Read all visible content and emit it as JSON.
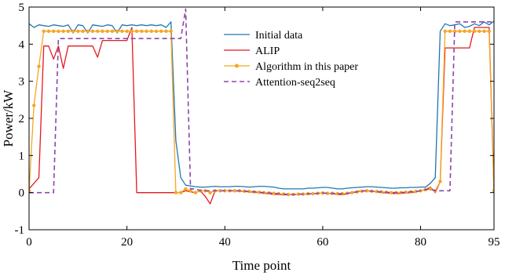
{
  "chart_data": {
    "type": "line",
    "title": "",
    "xlabel": "Time point",
    "ylabel": "Power/kW",
    "xlim": [
      0,
      95
    ],
    "ylim": [
      -1,
      5
    ],
    "xticks": [
      0,
      20,
      40,
      60,
      80,
      95
    ],
    "yticks": [
      -1,
      0,
      1,
      2,
      3,
      4,
      5
    ],
    "xtick_labels": [
      "0",
      "20",
      "40",
      "60",
      "80",
      "95"
    ],
    "ytick_labels": [
      "-1",
      "0",
      "1",
      "2",
      "3",
      "4",
      "5"
    ],
    "grid": false,
    "legend_position": "top-center",
    "series": [
      {
        "name": "Initial data",
        "color": "#1f77b4",
        "style": "solid",
        "marker": "none",
        "x": [
          0,
          1,
          2,
          3,
          4,
          5,
          6,
          7,
          8,
          9,
          10,
          11,
          12,
          13,
          14,
          15,
          16,
          17,
          18,
          19,
          20,
          21,
          22,
          23,
          24,
          25,
          26,
          27,
          28,
          29,
          30,
          31,
          32,
          33,
          34,
          35,
          36,
          37,
          38,
          39,
          40,
          41,
          42,
          43,
          44,
          45,
          46,
          47,
          48,
          49,
          50,
          51,
          52,
          53,
          54,
          55,
          56,
          57,
          58,
          59,
          60,
          61,
          62,
          63,
          64,
          65,
          66,
          67,
          68,
          69,
          70,
          71,
          72,
          73,
          74,
          75,
          76,
          77,
          78,
          79,
          80,
          81,
          82,
          83,
          84,
          85,
          86,
          87,
          88,
          89,
          90,
          91,
          92,
          93,
          94,
          95
        ],
        "y": [
          4.55,
          4.45,
          4.52,
          4.5,
          4.48,
          4.52,
          4.5,
          4.48,
          4.52,
          4.3,
          4.52,
          4.5,
          4.3,
          4.52,
          4.5,
          4.48,
          4.52,
          4.5,
          4.3,
          4.52,
          4.5,
          4.52,
          4.5,
          4.52,
          4.5,
          4.52,
          4.5,
          4.52,
          4.45,
          4.6,
          1.4,
          0.4,
          0.2,
          0.18,
          0.16,
          0.15,
          0.15,
          0.16,
          0.17,
          0.16,
          0.16,
          0.16,
          0.17,
          0.17,
          0.16,
          0.15,
          0.16,
          0.17,
          0.17,
          0.16,
          0.15,
          0.12,
          0.1,
          0.1,
          0.1,
          0.1,
          0.1,
          0.12,
          0.12,
          0.13,
          0.14,
          0.14,
          0.12,
          0.1,
          0.1,
          0.12,
          0.13,
          0.14,
          0.15,
          0.16,
          0.16,
          0.15,
          0.14,
          0.13,
          0.12,
          0.12,
          0.13,
          0.13,
          0.14,
          0.14,
          0.15,
          0.15,
          0.25,
          0.4,
          4.35,
          4.55,
          4.5,
          4.52,
          4.55,
          4.45,
          4.48,
          4.55,
          4.5,
          4.6,
          4.52,
          4.62
        ]
      },
      {
        "name": "ALIP",
        "color": "#e31a1c",
        "style": "solid",
        "marker": "none",
        "x": [
          0,
          1,
          2,
          3,
          4,
          5,
          6,
          7,
          8,
          9,
          10,
          11,
          12,
          13,
          14,
          15,
          16,
          17,
          18,
          19,
          20,
          21,
          22,
          23,
          24,
          25,
          26,
          27,
          28,
          29,
          30,
          31,
          32,
          33,
          34,
          35,
          36,
          37,
          38,
          39,
          40,
          41,
          42,
          43,
          44,
          45,
          46,
          47,
          48,
          49,
          50,
          51,
          52,
          53,
          54,
          55,
          56,
          57,
          58,
          59,
          60,
          61,
          62,
          63,
          64,
          65,
          66,
          67,
          68,
          69,
          70,
          71,
          72,
          73,
          74,
          75,
          76,
          77,
          78,
          79,
          80,
          81,
          82,
          83,
          84,
          85,
          86,
          87,
          88,
          89,
          90,
          91,
          92,
          93,
          94,
          95
        ],
        "y": [
          0.1,
          0.25,
          0.4,
          3.95,
          3.95,
          3.6,
          3.95,
          3.35,
          3.95,
          3.95,
          3.95,
          3.95,
          3.95,
          3.95,
          3.65,
          4.1,
          4.1,
          4.1,
          4.1,
          4.1,
          4.1,
          4.45,
          0.0,
          0.0,
          0.0,
          0.0,
          0.0,
          0.0,
          0.0,
          0.0,
          0.0,
          0.0,
          0.05,
          0.02,
          0.0,
          0.05,
          -0.1,
          -0.3,
          0.05,
          0.05,
          0.05,
          0.05,
          0.05,
          0.04,
          0.03,
          0.02,
          0.01,
          0.0,
          -0.02,
          -0.03,
          -0.05,
          -0.05,
          -0.06,
          -0.06,
          -0.05,
          -0.05,
          -0.04,
          -0.04,
          -0.03,
          -0.02,
          -0.01,
          -0.02,
          -0.03,
          -0.05,
          -0.06,
          -0.03,
          0.0,
          0.03,
          0.05,
          0.05,
          0.04,
          0.02,
          0.0,
          -0.01,
          -0.02,
          -0.03,
          -0.02,
          -0.01,
          0.0,
          0.02,
          0.05,
          0.08,
          0.15,
          0.0,
          0.3,
          3.9,
          3.9,
          3.9,
          3.9,
          3.9,
          3.9,
          4.45,
          4.45,
          4.45,
          4.45,
          0.05
        ]
      },
      {
        "name": "Algorithm in this paper",
        "color": "#f5a623",
        "style": "solid",
        "marker": "dot",
        "x": [
          0,
          1,
          2,
          3,
          4,
          5,
          6,
          7,
          8,
          9,
          10,
          11,
          12,
          13,
          14,
          15,
          16,
          17,
          18,
          19,
          20,
          21,
          22,
          23,
          24,
          25,
          26,
          27,
          28,
          29,
          30,
          31,
          32,
          33,
          34,
          35,
          36,
          37,
          38,
          39,
          40,
          41,
          42,
          43,
          44,
          45,
          46,
          47,
          48,
          49,
          50,
          51,
          52,
          53,
          54,
          55,
          56,
          57,
          58,
          59,
          60,
          61,
          62,
          63,
          64,
          65,
          66,
          67,
          68,
          69,
          70,
          71,
          72,
          73,
          74,
          75,
          76,
          77,
          78,
          79,
          80,
          81,
          82,
          83,
          84,
          85,
          86,
          87,
          88,
          89,
          90,
          91,
          92,
          93,
          94,
          95
        ],
        "y": [
          0.05,
          2.35,
          3.4,
          4.35,
          4.35,
          4.35,
          4.35,
          4.35,
          4.35,
          4.35,
          4.35,
          4.35,
          4.35,
          4.35,
          4.35,
          4.35,
          4.35,
          4.35,
          4.35,
          4.35,
          4.35,
          4.35,
          4.35,
          4.35,
          4.35,
          4.35,
          4.35,
          4.35,
          4.35,
          4.35,
          0.0,
          0.0,
          0.1,
          0.05,
          0.0,
          0.05,
          0.05,
          0.0,
          0.05,
          0.05,
          0.05,
          0.05,
          0.05,
          0.05,
          0.04,
          0.03,
          0.02,
          0.01,
          0.0,
          -0.01,
          -0.02,
          -0.03,
          -0.04,
          -0.05,
          -0.05,
          -0.04,
          -0.04,
          -0.03,
          -0.03,
          -0.02,
          -0.01,
          -0.02,
          -0.02,
          -0.03,
          -0.03,
          -0.02,
          0.0,
          0.02,
          0.04,
          0.05,
          0.04,
          0.03,
          0.02,
          0.01,
          0.0,
          0.0,
          0.0,
          0.01,
          0.02,
          0.03,
          0.05,
          0.08,
          0.1,
          0.05,
          0.3,
          4.35,
          4.35,
          4.35,
          4.35,
          4.35,
          4.35,
          4.35,
          4.35,
          4.35,
          4.35,
          0.05
        ]
      },
      {
        "name": "Attention-seq2seq",
        "color": "#8e44ad",
        "style": "dashed",
        "marker": "none",
        "x": [
          0,
          1,
          2,
          3,
          4,
          5,
          6,
          7,
          8,
          9,
          10,
          11,
          12,
          13,
          14,
          15,
          16,
          17,
          18,
          19,
          20,
          21,
          22,
          23,
          24,
          25,
          26,
          27,
          28,
          29,
          30,
          31,
          32,
          33,
          34,
          35,
          36,
          37,
          38,
          39,
          40,
          41,
          42,
          43,
          44,
          45,
          46,
          47,
          48,
          49,
          50,
          51,
          52,
          53,
          54,
          55,
          56,
          57,
          58,
          59,
          60,
          61,
          62,
          63,
          64,
          65,
          66,
          67,
          68,
          69,
          70,
          71,
          72,
          73,
          74,
          75,
          76,
          77,
          78,
          79,
          80,
          81,
          82,
          83,
          84,
          85,
          86,
          87,
          88,
          89,
          90,
          91,
          92,
          93,
          94,
          95
        ],
        "y": [
          0.0,
          0.0,
          0.0,
          0.0,
          0.0,
          0.0,
          4.15,
          4.15,
          4.15,
          4.15,
          4.15,
          4.15,
          4.15,
          4.15,
          4.15,
          4.15,
          4.15,
          4.15,
          4.15,
          4.15,
          4.15,
          4.15,
          4.15,
          4.15,
          4.15,
          4.15,
          4.15,
          4.15,
          4.15,
          4.15,
          4.15,
          4.15,
          4.95,
          0.1,
          0.1,
          0.05,
          0.05,
          0.05,
          0.05,
          0.05,
          0.05,
          0.05,
          0.05,
          0.05,
          0.04,
          0.03,
          0.02,
          0.01,
          0.0,
          -0.01,
          -0.02,
          -0.03,
          -0.04,
          -0.05,
          -0.05,
          -0.04,
          -0.04,
          -0.03,
          -0.03,
          -0.02,
          -0.01,
          -0.02,
          -0.02,
          -0.03,
          -0.03,
          -0.02,
          0.0,
          0.02,
          0.04,
          0.05,
          0.04,
          0.03,
          0.02,
          0.01,
          0.0,
          0.0,
          0.0,
          0.01,
          0.02,
          0.03,
          0.05,
          0.08,
          0.1,
          0.05,
          0.05,
          0.05,
          0.05,
          4.6,
          4.6,
          4.6,
          4.6,
          4.6,
          4.6,
          4.6,
          4.6,
          4.6
        ]
      }
    ]
  }
}
